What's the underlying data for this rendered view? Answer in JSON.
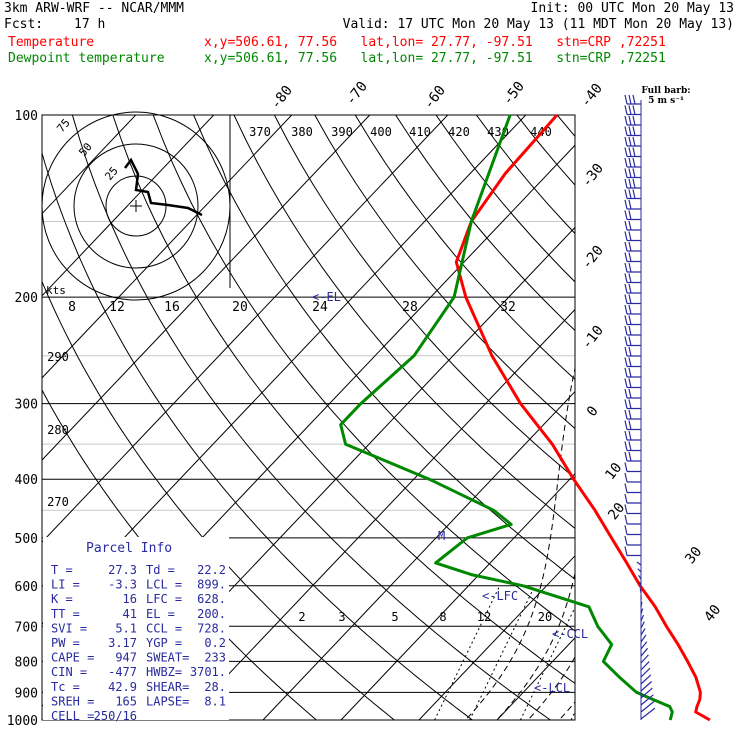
{
  "header": {
    "model": "3km ARW-WRF -- NCAR/MMM",
    "fcst_label": "Fcst:",
    "fcst_value": "17 h",
    "init": "Init: 00 UTC Mon 20 May 13",
    "valid": "Valid: 17 UTC Mon 20 May 13 (11 MDT Mon 20 May 13)"
  },
  "legend": [
    {
      "name": "Temperature",
      "color": "#ff0000",
      "info": "x,y=506.61, 77.56   lat,lon= 27.77, -97.51   stn=CRP ,72251"
    },
    {
      "name": "Dewpoint temperature",
      "color": "#008800",
      "info": "x,y=506.61, 77.56   lat,lon= 27.77, -97.51   stn=CRP ,72251"
    }
  ],
  "wind_key": {
    "line1": "Full barb:",
    "line2": "5 m s⁻¹"
  },
  "hodograph": {
    "unit_label": "kts",
    "ring_labels": [
      "25",
      "50",
      "75"
    ]
  },
  "parcel_info": {
    "title": "Parcel Info",
    "rows": [
      [
        "T  =",
        "27.3",
        "Td =",
        "22.2"
      ],
      [
        "LI =",
        "-3.3",
        "LCL =",
        "899."
      ],
      [
        "K  =",
        "16",
        "LFC =",
        "628."
      ],
      [
        "TT =",
        "41",
        "EL  =",
        "200."
      ],
      [
        "SVI =",
        "5.1",
        "CCL =",
        "728."
      ],
      [
        "PW =",
        "3.17",
        "YGP =",
        "0.2"
      ],
      [
        "CAPE =",
        "947",
        "SWEAT=",
        "233"
      ],
      [
        "CIN =",
        "-477",
        "HWBZ=",
        "3701."
      ],
      [
        "Tc =",
        "42.9",
        "SHEAR=",
        "28."
      ],
      [
        "SREH =",
        "165",
        "LAPSE=",
        "8.1"
      ],
      [
        "CELL =",
        "250/16",
        "",
        ""
      ]
    ]
  },
  "chart_data": {
    "type": "line",
    "pressure_levels": [
      "100",
      "200",
      "300",
      "400",
      "500",
      "600",
      "700",
      "800",
      "900",
      "1000"
    ],
    "isotherm_labels": [
      "-80",
      "-70",
      "-60",
      "-50",
      "-40",
      "-30",
      "-20",
      "-10",
      "0",
      "10",
      "20",
      "30",
      "40"
    ],
    "theta_labels": [
      "370",
      "380",
      "390",
      "400",
      "410",
      "420",
      "430",
      "440"
    ],
    "theta_side_labels": [
      "290",
      "280",
      "270"
    ],
    "mixing_ratio_labels": [
      "2",
      "3",
      "5",
      "8",
      "12",
      "20"
    ],
    "upper_labels": [
      "8",
      "12",
      "16",
      "20",
      "24",
      "28",
      "32"
    ],
    "level_markers": [
      "<-EL",
      "<-LFC",
      "<-CCL",
      "<-LCL",
      "M"
    ],
    "series": [
      {
        "name": "Temperature",
        "color": "#ff0000",
        "p": [
          1000,
          970,
          950,
          925,
          900,
          850,
          800,
          750,
          700,
          650,
          600,
          550,
          500,
          450,
          400,
          350,
          300,
          250,
          200,
          175,
          150,
          125,
          100
        ],
        "t": [
          27.3,
          24.5,
          24.0,
          23.5,
          22.7,
          20.3,
          17.3,
          14.0,
          10.3,
          6.5,
          2.0,
          -2.5,
          -7.5,
          -13.0,
          -19.5,
          -26.5,
          -35.5,
          -45.0,
          -55.5,
          -61.0,
          -64.0,
          -65.5,
          -66.0
        ]
      },
      {
        "name": "Dewpoint temperature",
        "color": "#008800",
        "p": [
          1000,
          970,
          950,
          925,
          900,
          850,
          800,
          750,
          700,
          650,
          600,
          575,
          550,
          500,
          475,
          450,
          400,
          350,
          325,
          300,
          250,
          200,
          150,
          100
        ],
        "t": [
          22.2,
          21.5,
          20.5,
          17.5,
          14.5,
          10.5,
          6.5,
          5.5,
          1.5,
          -2.0,
          -13.0,
          -21.0,
          -27.0,
          -26.0,
          -22.0,
          -26.0,
          -38.0,
          -53.0,
          -56.0,
          -56.0,
          -55.0,
          -57.0,
          -64.0,
          -72.0
        ]
      }
    ],
    "title": "",
    "xlabel": "",
    "ylabel": "",
    "ylim": [
      1000,
      100
    ],
    "yscale": "log",
    "grid": true
  }
}
